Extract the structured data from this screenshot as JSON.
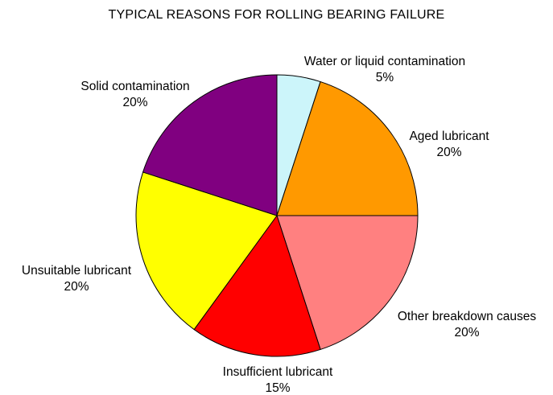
{
  "chart_data": {
    "type": "pie",
    "title": "TYPICAL REASONS FOR ROLLING BEARING FAILURE",
    "legend": "none",
    "slices": [
      {
        "label": "Water or liquid contamination",
        "value": 5,
        "value_label": "5%",
        "color": "#ccf5fa"
      },
      {
        "label": "Aged lubricant",
        "value": 20,
        "value_label": "20%",
        "color": "#ff9900"
      },
      {
        "label": "Other breakdown causes",
        "value": 20,
        "value_label": "20%",
        "color": "#ff8080"
      },
      {
        "label": "Insufficient lubricant",
        "value": 15,
        "value_label": "15%",
        "color": "#ff0000"
      },
      {
        "label": "Unsuitable lubricant",
        "value": 20,
        "value_label": "20%",
        "color": "#ffff00"
      },
      {
        "label": "Solid contamination",
        "value": 20,
        "value_label": "20%",
        "color": "#800080"
      }
    ]
  }
}
